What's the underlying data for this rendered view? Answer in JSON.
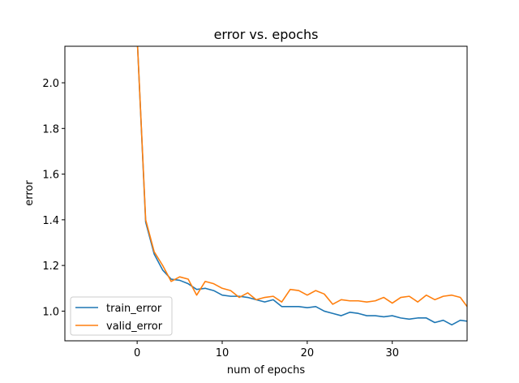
{
  "chart_data": {
    "type": "line",
    "title": "error vs. epochs",
    "xlabel": "num of epochs",
    "ylabel": "error",
    "xlim": [
      -8.5,
      38.8
    ],
    "ylim": [
      0.87,
      2.16
    ],
    "xticks": [
      0,
      10,
      20,
      30
    ],
    "yticks": [
      1.0,
      1.2,
      1.4,
      1.6,
      1.8,
      2.0
    ],
    "xtick_labels": [
      "0",
      "10",
      "20",
      "30"
    ],
    "ytick_labels": [
      "1.0",
      "1.2",
      "1.4",
      "1.6",
      "1.8",
      "2.0"
    ],
    "grid": false,
    "legend_position": "lower-left",
    "x": [
      0,
      1,
      2,
      3,
      4,
      5,
      6,
      7,
      8,
      9,
      10,
      11,
      12,
      13,
      14,
      15,
      16,
      17,
      18,
      19,
      20,
      21,
      22,
      23,
      24,
      25,
      26,
      27,
      28,
      29,
      30,
      31,
      32,
      33,
      34,
      35,
      36,
      37,
      38,
      39
    ],
    "series": [
      {
        "name": "train_error",
        "color": "#1f77b4",
        "values": [
          2.2,
          1.39,
          1.25,
          1.18,
          1.14,
          1.135,
          1.12,
          1.095,
          1.1,
          1.09,
          1.07,
          1.065,
          1.065,
          1.06,
          1.05,
          1.04,
          1.05,
          1.02,
          1.02,
          1.02,
          1.015,
          1.02,
          1.0,
          0.99,
          0.98,
          0.995,
          0.99,
          0.98,
          0.98,
          0.975,
          0.98,
          0.97,
          0.965,
          0.97,
          0.97,
          0.95,
          0.96,
          0.94,
          0.96,
          0.955
        ]
      },
      {
        "name": "valid_error",
        "color": "#ff7f0e",
        "values": [
          2.2,
          1.4,
          1.26,
          1.2,
          1.13,
          1.15,
          1.14,
          1.07,
          1.13,
          1.12,
          1.1,
          1.09,
          1.06,
          1.08,
          1.05,
          1.06,
          1.065,
          1.04,
          1.095,
          1.09,
          1.07,
          1.09,
          1.075,
          1.03,
          1.05,
          1.045,
          1.045,
          1.04,
          1.045,
          1.06,
          1.035,
          1.06,
          1.065,
          1.04,
          1.07,
          1.05,
          1.065,
          1.07,
          1.06,
          1.01
        ]
      }
    ]
  }
}
